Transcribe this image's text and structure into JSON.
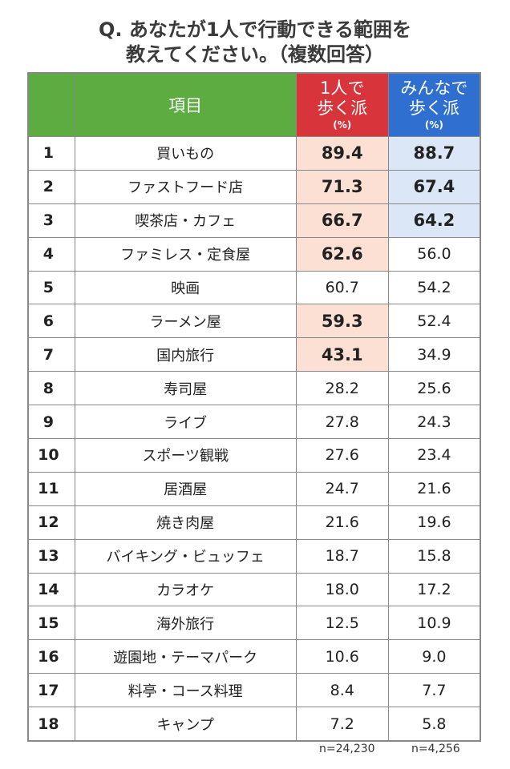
{
  "title": {
    "line1": "Q. あなたが1人で行動できる範囲を",
    "line2": "教えてください。（複数回答）"
  },
  "colors": {
    "item_header": "#5dac42",
    "solo_header": "#d7343b",
    "group_header": "#2f6fd0",
    "solo_highlight": "#fbe0d3",
    "group_highlight": "#dbe7f6"
  },
  "chart_data": {
    "type": "table",
    "columns": [
      "",
      "項目",
      "1人で歩く派(%)",
      "みんなで歩く派(%)"
    ],
    "header": {
      "item": "項目",
      "solo": {
        "line1": "1人で",
        "line2": "歩く派",
        "unit": "(%)"
      },
      "group": {
        "line1": "みんなで",
        "line2": "歩く派",
        "unit": "(%)"
      }
    },
    "rows": [
      {
        "rank": "1",
        "item": "買いもの",
        "solo": "89.4",
        "group": "88.7",
        "solo_hl": true,
        "group_hl": true
      },
      {
        "rank": "2",
        "item": "ファストフード店",
        "solo": "71.3",
        "group": "67.4",
        "solo_hl": true,
        "group_hl": true
      },
      {
        "rank": "3",
        "item": "喫茶店・カフェ",
        "solo": "66.7",
        "group": "64.2",
        "solo_hl": true,
        "group_hl": true
      },
      {
        "rank": "4",
        "item": "ファミレス・定食屋",
        "solo": "62.6",
        "group": "56.0",
        "solo_hl": true,
        "group_hl": false
      },
      {
        "rank": "5",
        "item": "映画",
        "solo": "60.7",
        "group": "54.2",
        "solo_hl": false,
        "group_hl": false
      },
      {
        "rank": "6",
        "item": "ラーメン屋",
        "solo": "59.3",
        "group": "52.4",
        "solo_hl": true,
        "group_hl": false
      },
      {
        "rank": "7",
        "item": "国内旅行",
        "solo": "43.1",
        "group": "34.9",
        "solo_hl": true,
        "group_hl": false
      },
      {
        "rank": "8",
        "item": "寿司屋",
        "solo": "28.2",
        "group": "25.6",
        "solo_hl": false,
        "group_hl": false
      },
      {
        "rank": "9",
        "item": "ライブ",
        "solo": "27.8",
        "group": "24.3",
        "solo_hl": false,
        "group_hl": false
      },
      {
        "rank": "10",
        "item": "スポーツ観戦",
        "solo": "27.6",
        "group": "23.4",
        "solo_hl": false,
        "group_hl": false
      },
      {
        "rank": "11",
        "item": "居酒屋",
        "solo": "24.7",
        "group": "21.6",
        "solo_hl": false,
        "group_hl": false
      },
      {
        "rank": "12",
        "item": "焼き肉屋",
        "solo": "21.6",
        "group": "19.6",
        "solo_hl": false,
        "group_hl": false
      },
      {
        "rank": "13",
        "item": "バイキング・ビュッフェ",
        "solo": "18.7",
        "group": "15.8",
        "solo_hl": false,
        "group_hl": false
      },
      {
        "rank": "14",
        "item": "カラオケ",
        "solo": "18.0",
        "group": "17.2",
        "solo_hl": false,
        "group_hl": false
      },
      {
        "rank": "15",
        "item": "海外旅行",
        "solo": "12.5",
        "group": "10.9",
        "solo_hl": false,
        "group_hl": false
      },
      {
        "rank": "16",
        "item": "遊園地・テーマパーク",
        "solo": "10.6",
        "group": "9.0",
        "solo_hl": false,
        "group_hl": false
      },
      {
        "rank": "17",
        "item": "料亭・コース料理",
        "solo": "8.4",
        "group": "7.7",
        "solo_hl": false,
        "group_hl": false
      },
      {
        "rank": "18",
        "item": "キャンプ",
        "solo": "7.2",
        "group": "5.8",
        "solo_hl": false,
        "group_hl": false
      }
    ],
    "n_solo": "n=24,230",
    "n_group": "n=4,256"
  }
}
